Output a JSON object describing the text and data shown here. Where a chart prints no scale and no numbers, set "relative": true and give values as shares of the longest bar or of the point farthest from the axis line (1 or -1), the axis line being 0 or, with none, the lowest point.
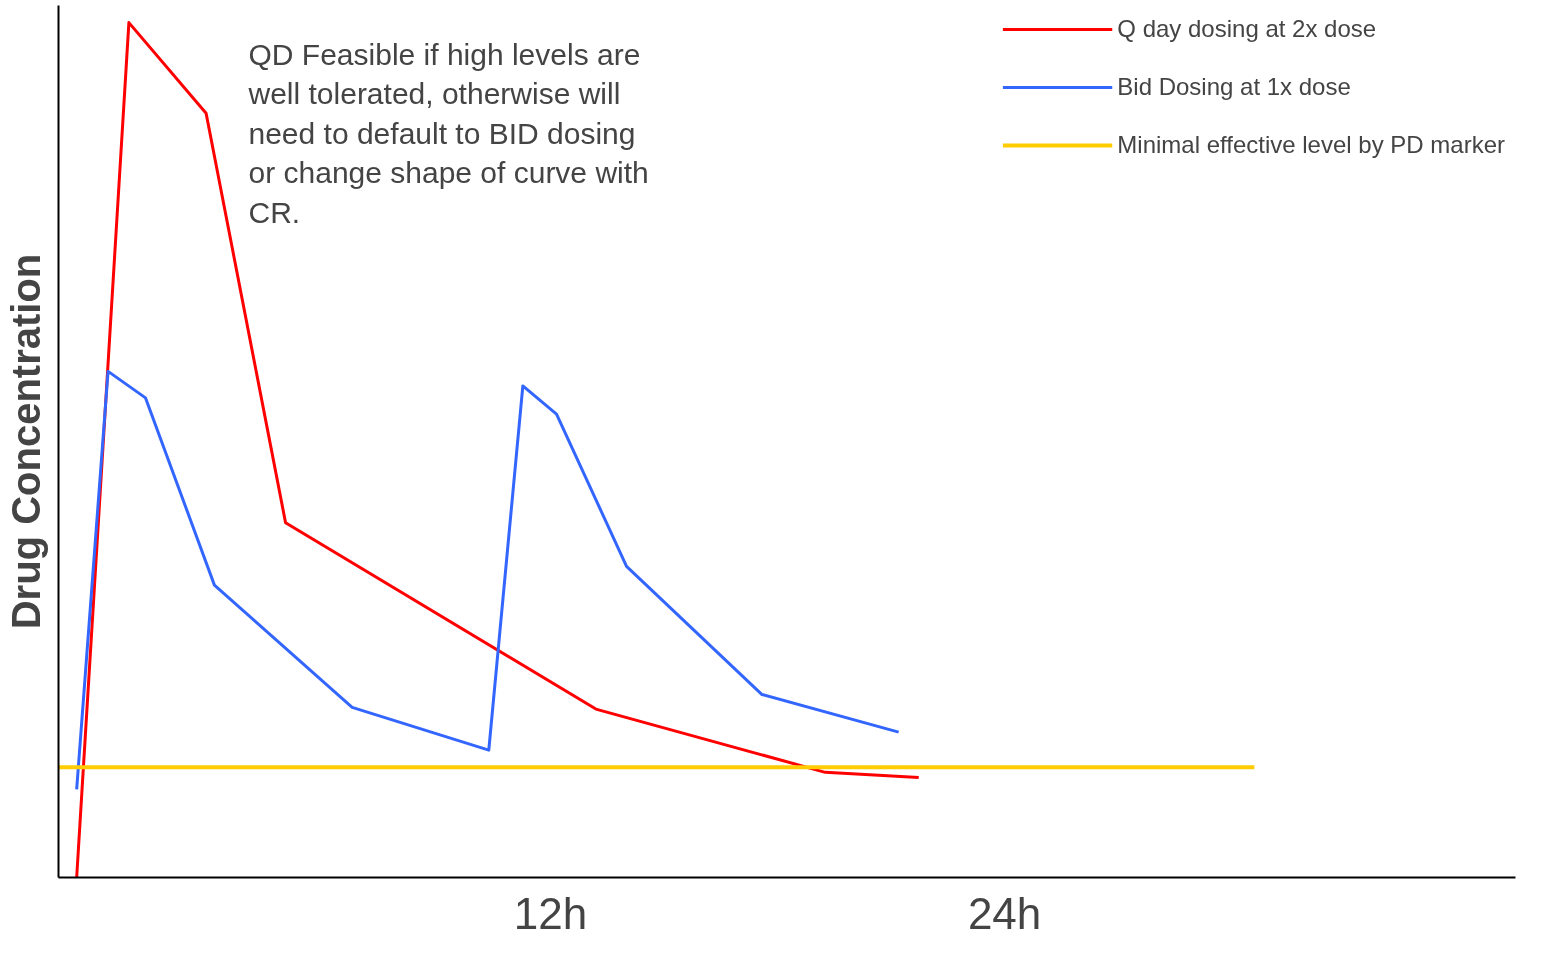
{
  "chart_data": {
    "type": "line",
    "ylabel": "Drug Concentration",
    "relative": true,
    "xlim": [
      -1,
      37.5
    ],
    "xticks": [
      {
        "value": 12,
        "label": "12h"
      },
      {
        "value": 24,
        "label": "24h"
      }
    ],
    "annotations": [
      "QD Feasible if high levels are well tolerated, otherwise will need to default to BID dosing or change shape of curve with CR."
    ],
    "legend": "top right",
    "grid": false,
    "marker": "none",
    "line_style": "solid",
    "series": [
      {
        "name": "Q day dosing at 2x dose",
        "color": "#ff0000",
        "x": [
          -0.52,
          0.86,
          2.9,
          5.0,
          13.2,
          19.26,
          21.73
        ],
        "values": [
          0,
          1,
          0.894,
          0.415,
          0.197,
          0.123,
          0.117
        ]
      },
      {
        "name": "Bid Dosing at 1x dose",
        "color": "#3366ff",
        "x": [
          -0.52,
          0.31,
          1.3,
          3.12,
          6.76,
          10.37,
          11.27,
          12.16,
          14.01,
          17.59,
          21.2
        ],
        "values": [
          0.103,
          0.592,
          0.561,
          0.342,
          0.199,
          0.149,
          0.575,
          0.542,
          0.364,
          0.214,
          0.17
        ]
      },
      {
        "name": "Minimal effective level by PD marker",
        "color": "#ffcc00",
        "x": [
          -1,
          30.6
        ],
        "values": [
          0.129,
          0.129
        ]
      }
    ]
  }
}
